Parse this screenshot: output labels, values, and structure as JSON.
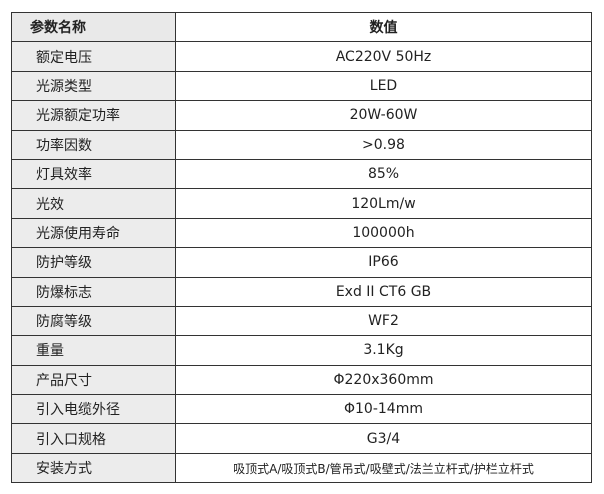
{
  "table": {
    "headers": [
      "参数名称",
      "数值"
    ],
    "rows": [
      {
        "name": "额定电压",
        "value": "AC220V  50Hz"
      },
      {
        "name": "光源类型",
        "value": "LED"
      },
      {
        "name": "光源额定功率",
        "value": "20W-60W"
      },
      {
        "name": "功率因数",
        "value": ">0.98"
      },
      {
        "name": "灯具效率",
        "value": "85%"
      },
      {
        "name": "光效",
        "value": "120Lm/w"
      },
      {
        "name": "光源使用寿命",
        "value": "100000h"
      },
      {
        "name": "防护等级",
        "value": "IP66"
      },
      {
        "name": "防爆标志",
        "value": "Exd II CT6 GB"
      },
      {
        "name": "防腐等级",
        "value": "WF2"
      },
      {
        "name": "重量",
        "value": "3.1Kg"
      },
      {
        "name": "产品尺寸",
        "value": "Φ220x360mm"
      },
      {
        "name": "引入电缆外径",
        "value": "Φ10-14mm"
      },
      {
        "name": "引入口规格",
        "value": "G3/4"
      },
      {
        "name": "安装方式",
        "value": "吸顶式A/吸顶式B/管吊式/吸壁式/法兰立杆式/护栏立杆式"
      }
    ]
  }
}
